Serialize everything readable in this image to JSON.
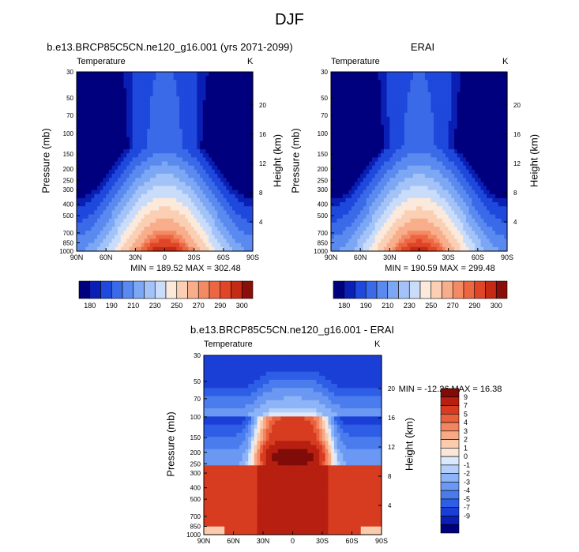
{
  "title": "DJF",
  "colors": {
    "level_fill": [
      "#00007e",
      "#0a1fb4",
      "#1f48dc",
      "#3b6ae8",
      "#5a8af0",
      "#7ca7f4",
      "#a3c3f8",
      "#c9dcfa",
      "#fbe9dc",
      "#fbcfb3",
      "#f8ae8b",
      "#f48a64",
      "#ec6642",
      "#df4526",
      "#c42a14",
      "#8a0e0a"
    ],
    "diff_fill": [
      "#00007e",
      "#0a1fb4",
      "#1a3fd6",
      "#2f5ee6",
      "#4a7cee",
      "#6a98f2",
      "#8db4f6",
      "#b4cff9",
      "#dce8fb",
      "#fbe6d8",
      "#fbcbad",
      "#f8aa86",
      "#f38660",
      "#e9603d",
      "#d83c20",
      "#b71f10",
      "#7f0c08"
    ],
    "grid": "#000000"
  },
  "chart_data": [
    {
      "type": "heatmap",
      "title": "b.e13.BRCP85C5CN.ne120_g16.001 (yrs 2071-2099)",
      "variable": "Temperature",
      "units": "K",
      "xlabel": "",
      "ylabel": "Pressure (mb)",
      "ylabel_right": "Height (km)",
      "x_ticks": [
        "90N",
        "60N",
        "30N",
        "0",
        "30S",
        "60S",
        "90S"
      ],
      "y_ticks": [
        30,
        50,
        70,
        100,
        150,
        200,
        250,
        300,
        400,
        500,
        700,
        850,
        1000
      ],
      "y_ticks_right": [
        20,
        16,
        12,
        8,
        4
      ],
      "ylim": [
        30,
        1000
      ],
      "y_scale": "log",
      "stats": "MIN = 189.52  MAX = 302.48",
      "colorbar_labels": [
        "180",
        "190",
        "210",
        "230",
        "250",
        "270",
        "290",
        "300"
      ]
    },
    {
      "type": "heatmap",
      "title": "ERAI",
      "variable": "Temperature",
      "units": "K",
      "xlabel": "",
      "ylabel": "Pressure (mb)",
      "ylabel_right": "Height (km)",
      "x_ticks": [
        "90N",
        "60N",
        "30N",
        "0",
        "30S",
        "60S",
        "90S"
      ],
      "y_ticks": [
        30,
        50,
        70,
        100,
        150,
        200,
        250,
        300,
        400,
        500,
        700,
        850,
        1000
      ],
      "y_ticks_right": [
        20,
        16,
        12,
        8,
        4
      ],
      "ylim": [
        30,
        1000
      ],
      "y_scale": "log",
      "stats": "MIN = 190.59  MAX = 299.48",
      "colorbar_labels": [
        "180",
        "190",
        "210",
        "230",
        "250",
        "270",
        "290",
        "300"
      ]
    },
    {
      "type": "heatmap",
      "title": "b.e13.BRCP85C5CN.ne120_g16.001 - ERAI",
      "variable": "Temperature",
      "units": "K",
      "xlabel": "",
      "ylabel": "Pressure (mb)",
      "ylabel_right": "Height (km)",
      "x_ticks": [
        "90N",
        "60N",
        "30N",
        "0",
        "30S",
        "60S",
        "90S"
      ],
      "y_ticks": [
        30,
        50,
        70,
        100,
        150,
        200,
        250,
        300,
        400,
        500,
        700,
        850,
        1000
      ],
      "y_ticks_right": [
        20,
        16,
        12,
        8,
        4
      ],
      "ylim": [
        30,
        1000
      ],
      "y_scale": "log",
      "stats": "MIN = -12.26  MAX =  16.38",
      "colorbar_labels": [
        "9",
        "7",
        "5",
        "4",
        "3",
        "2",
        "1",
        "0",
        "-1",
        "-2",
        "-3",
        "-4",
        "-5",
        "-7",
        "-9"
      ]
    }
  ]
}
